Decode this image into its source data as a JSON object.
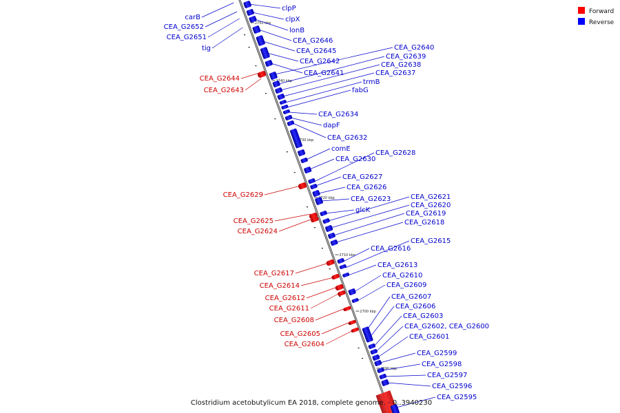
{
  "caption": "Clostridium acetobutylicum EA 2018, complete genome. - 0..3940230",
  "legend": [
    {
      "label": "Forward",
      "color": "#ff0000"
    },
    {
      "label": "Reverse",
      "color": "#0000ff"
    }
  ],
  "ticks": [
    {
      "pos": 2750,
      "label": "2750 kbp"
    },
    {
      "pos": 2740,
      "label": "2740 kbp"
    },
    {
      "pos": 2730,
      "label": "2730 kbp"
    },
    {
      "pos": 2720,
      "label": "2720 kbp"
    },
    {
      "pos": 2710,
      "label": "2710 kbp"
    },
    {
      "pos": 2700,
      "label": "2700 kbp"
    },
    {
      "pos": 2690,
      "label": "2690 kbp"
    }
  ],
  "labels_left_reverse": [
    "carB",
    "CEA_G2652",
    "CEA_G2651",
    "tig"
  ],
  "labels_left_forward": [
    "CEA_G2644",
    "CEA_G2643",
    "CEA_G2629",
    "CEA_G2625",
    "CEA_G2624",
    "CEA_G2617",
    "CEA_G2614",
    "CEA_G2612",
    "CEA_G2611",
    "CEA_G2608",
    "CEA_G2605",
    "CEA_G2604"
  ],
  "labels_right": [
    "clpP",
    "clpX",
    "lonB",
    "CEA_G2646",
    "CEA_G2645",
    "CEA_G2642",
    "CEA_G2641",
    "CEA_G2640",
    "CEA_G2639",
    "CEA_G2638",
    "CEA_G2637",
    "trmB",
    "fabG",
    "CEA_G2634",
    "dapF",
    "CEA_G2632",
    "comE",
    "CEA_G2630",
    "CEA_G2628",
    "CEA_G2627",
    "CEA_G2626",
    "CEA_G2623",
    "glcK",
    "CEA_G2621",
    "CEA_G2620",
    "CEA_G2619",
    "CEA_G2618",
    "CEA_G2616",
    "CEA_G2615",
    "CEA_G2613",
    "CEA_G2610",
    "CEA_G2609",
    "CEA_G2607",
    "CEA_G2606",
    "CEA_G2603",
    "CEA_G2602, CEA_G2600",
    "CEA_G2601",
    "CEA_G2599",
    "CEA_G2598",
    "CEA_G2597",
    "CEA_G2596",
    "CEA_G2595"
  ]
}
